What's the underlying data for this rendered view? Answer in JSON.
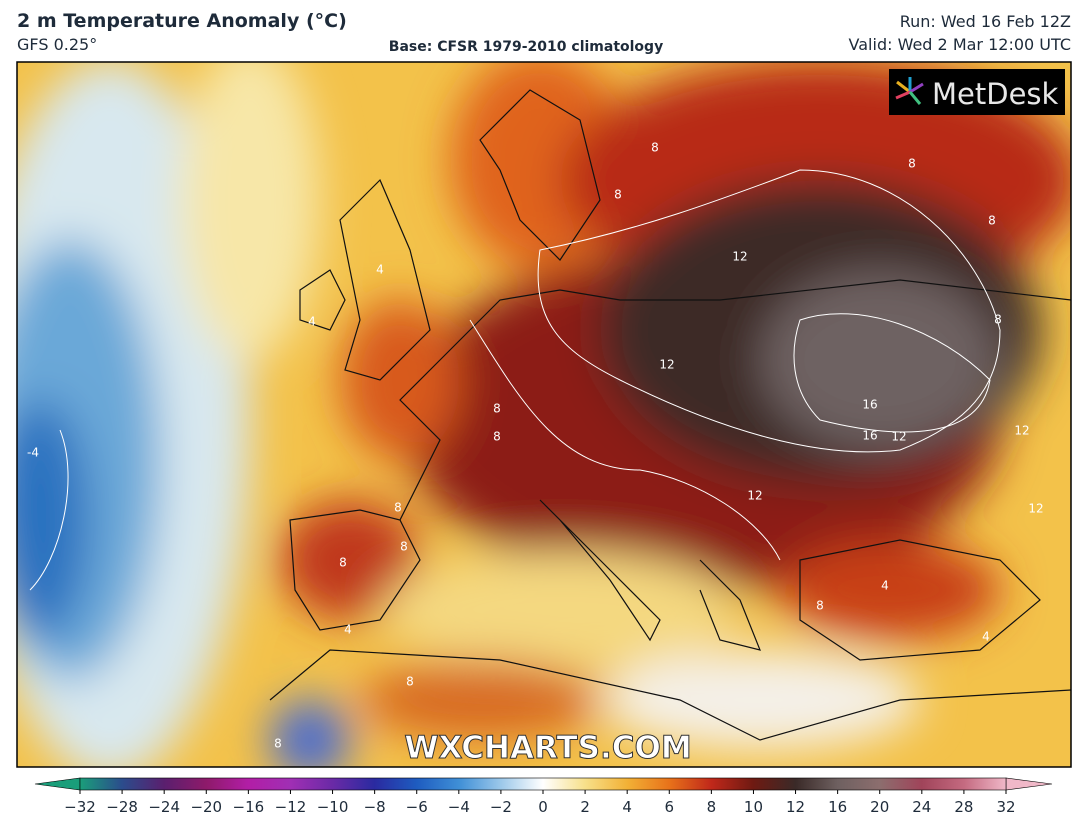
{
  "header": {
    "title": "2 m Temperature Anomaly (°C)",
    "model": "GFS 0.25°",
    "base": "Base: CFSR 1979-2010 climatology",
    "run": "Run: Wed 16 Feb 12Z",
    "valid": "Valid: Wed 2 Mar 12:00 UTC"
  },
  "logo": "MetDesk",
  "watermark": "WXCHARTS.COM",
  "contour_labels": [
    8,
    8,
    8,
    8,
    12,
    4,
    4,
    8,
    12,
    16,
    16,
    12,
    8,
    8,
    12,
    12,
    12,
    8,
    8,
    8,
    4,
    8,
    4,
    8,
    4,
    8,
    -4
  ],
  "colorbar": {
    "ticks": [
      {
        "value": -32,
        "label": "−32"
      },
      {
        "value": -28,
        "label": "−28"
      },
      {
        "value": -24,
        "label": "−24"
      },
      {
        "value": -20,
        "label": "−20"
      },
      {
        "value": -16,
        "label": "−16"
      },
      {
        "value": -12,
        "label": "−12"
      },
      {
        "value": -10,
        "label": "−10"
      },
      {
        "value": -8,
        "label": "−8"
      },
      {
        "value": -6,
        "label": "−6"
      },
      {
        "value": -4,
        "label": "−4"
      },
      {
        "value": -2,
        "label": "−2"
      },
      0,
      2,
      4,
      6,
      8,
      10,
      12,
      16,
      20,
      24,
      28,
      32
    ],
    "colors": [
      "#1a9e7a",
      "#2b4c8c",
      "#5a1f6e",
      "#8e1a6a",
      "#b21ea6",
      "#a02fb4",
      "#6a2aa6",
      "#2a2aa0",
      "#1e5cc0",
      "#3f8fd6",
      "#9cc8ea",
      "#ffffff",
      "#f7e08a",
      "#f2b136",
      "#e8721a",
      "#c0281a",
      "#6e1a12",
      "#3a2a28",
      "#6e6060",
      "#8c6e6e",
      "#a0445a",
      "#c46a80",
      "#f0b8c8"
    ]
  }
}
